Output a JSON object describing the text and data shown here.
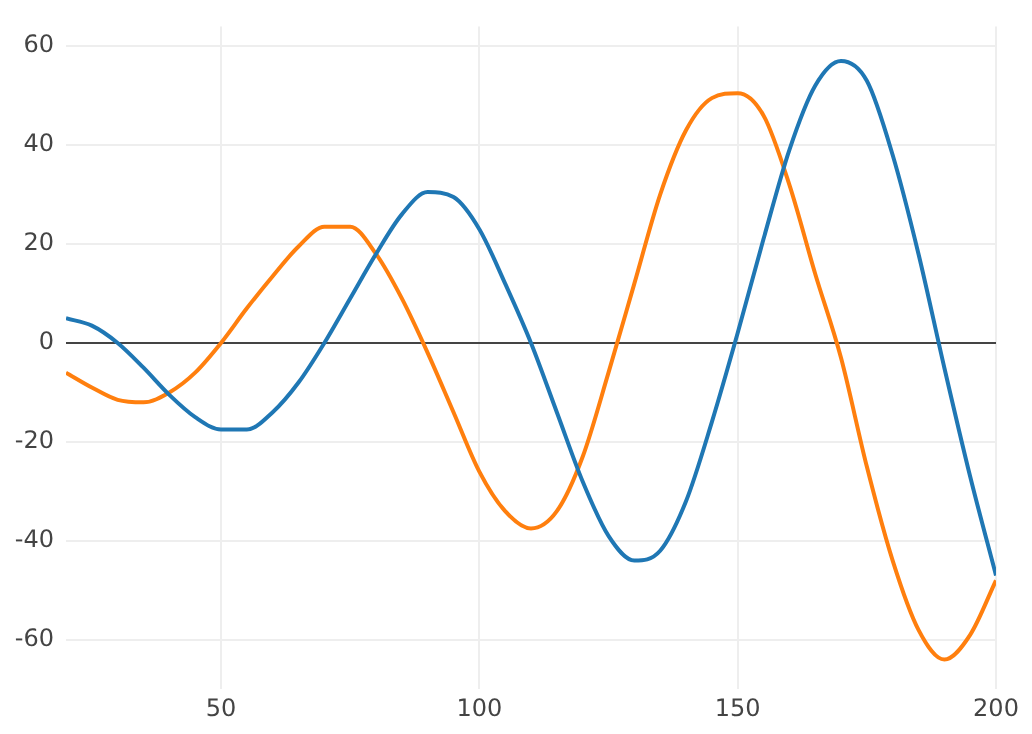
{
  "chart_data": {
    "type": "line",
    "x": [
      20,
      25,
      30,
      35,
      40,
      45,
      50,
      55,
      60,
      65,
      70,
      75,
      80,
      85,
      90,
      95,
      100,
      105,
      110,
      115,
      120,
      125,
      130,
      135,
      140,
      145,
      150,
      155,
      160,
      165,
      170,
      175,
      180,
      185,
      190,
      195,
      200
    ],
    "series": [
      {
        "color": "#1f77b4",
        "values": [
          5,
          3.5,
          0,
          -5,
          -10.5,
          -15,
          -17.5,
          -17.5,
          -14,
          -8,
          0,
          9,
          18,
          26,
          30.5,
          29.5,
          23,
          12,
          0,
          -14,
          -28,
          -39,
          -44,
          -42,
          -32,
          -16,
          2,
          21,
          39,
          52,
          57,
          53,
          38,
          18,
          -5,
          -27,
          -47
        ]
      },
      {
        "color": "#ff7f0e",
        "values": [
          -6,
          -9,
          -11.5,
          -12,
          -10,
          -6,
          0,
          7,
          13.5,
          19.5,
          23.5,
          23.5,
          18,
          9,
          -2,
          -14,
          -26,
          -34,
          -37.5,
          -34,
          -23,
          -6,
          12,
          30,
          43,
          49.5,
          50.5,
          46,
          32,
          14,
          -3,
          -25,
          -44,
          -58,
          -64,
          -59,
          -48
        ]
      }
    ],
    "xlim": [
      20,
      200
    ],
    "xticks": [
      50,
      100,
      150,
      200
    ],
    "ylim": [
      -70,
      64
    ],
    "yticks": [
      -60,
      -40,
      -20,
      0,
      20,
      40,
      60
    ],
    "grid": true,
    "legend": false,
    "marker": "none",
    "line_style": "solid",
    "ref_lines": [
      {
        "axis": "y",
        "value": 0,
        "color": "#444444"
      }
    ]
  }
}
